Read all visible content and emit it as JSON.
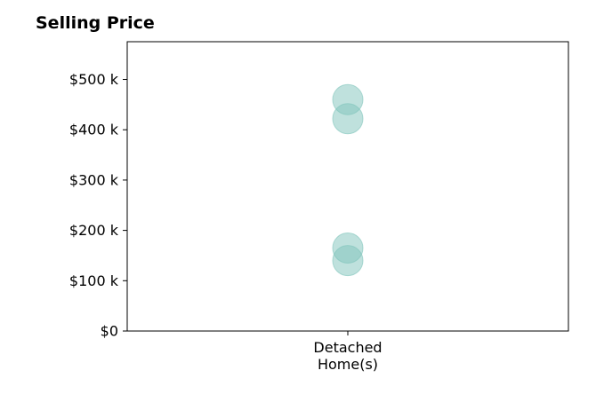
{
  "chart_data": {
    "type": "scatter",
    "title": "Selling Price",
    "xlabel": "",
    "ylabel": "",
    "categories": [
      "Detached\nHome(s)"
    ],
    "y_ticks": [
      {
        "value": 0,
        "label": "$0"
      },
      {
        "value": 100000,
        "label": "$100 k"
      },
      {
        "value": 200000,
        "label": "$200 k"
      },
      {
        "value": 300000,
        "label": "$300 k"
      },
      {
        "value": 400000,
        "label": "$400 k"
      },
      {
        "value": 500000,
        "label": "$500 k"
      }
    ],
    "ylim": [
      0,
      575000
    ],
    "grid": false,
    "series": [
      {
        "category": "Detached\nHome(s)",
        "values": [
          140000,
          165000,
          422000,
          460000
        ]
      }
    ],
    "marker_color": "#7fc4bb"
  }
}
